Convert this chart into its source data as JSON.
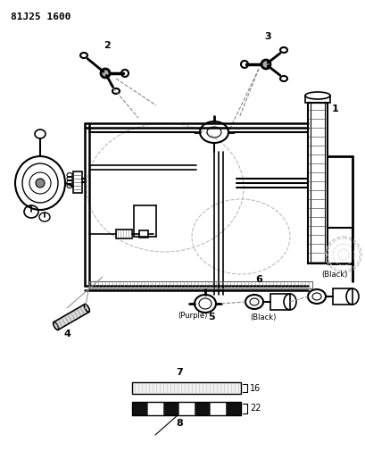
{
  "title": "81J25 1600",
  "background_color": "#ffffff",
  "line_color": "#000000",
  "fig_width": 4.09,
  "fig_height": 5.33,
  "dpi": 100,
  "labels": {
    "title": "81J25 1600",
    "label1": "1",
    "label2": "2",
    "label3": "3",
    "label4": "4",
    "label5": "5",
    "label6": "6",
    "label7": "7",
    "label8": "8",
    "label16": "16",
    "label22": "22",
    "purple": "(Purple)",
    "black1": "(Black)",
    "black2": "(Black)"
  }
}
